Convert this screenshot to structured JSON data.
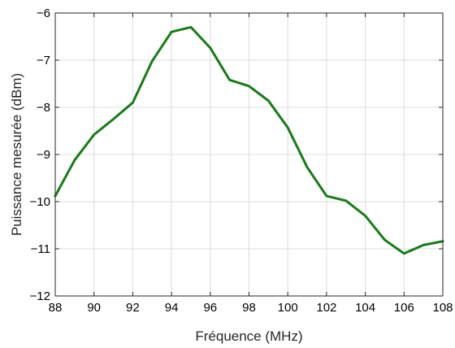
{
  "chart_data": {
    "type": "line",
    "title": "",
    "xlabel": "Fréquence (MHz)",
    "ylabel": "Puissance mesurée (dBm)",
    "xlim": [
      88,
      108
    ],
    "ylim": [
      -12,
      -6
    ],
    "xticks": [
      88,
      90,
      92,
      94,
      96,
      98,
      100,
      102,
      104,
      106,
      108
    ],
    "yticks": [
      -12,
      -11,
      -10,
      -9,
      -8,
      -7,
      -6
    ],
    "grid": true,
    "legend": "none",
    "series": [
      {
        "color": "#1a7a1a",
        "x": [
          88,
          89,
          90,
          91,
          92,
          93,
          94,
          95,
          96,
          97,
          98,
          99,
          100,
          101,
          102,
          103,
          104,
          105,
          106,
          107,
          108
        ],
        "y": [
          -9.88,
          -9.12,
          -8.58,
          -8.25,
          -7.9,
          -7.02,
          -6.4,
          -6.3,
          -6.74,
          -7.42,
          -7.55,
          -7.86,
          -8.43,
          -9.27,
          -9.88,
          -9.98,
          -10.3,
          -10.81,
          -11.1,
          -10.92,
          -10.84
        ]
      }
    ]
  }
}
